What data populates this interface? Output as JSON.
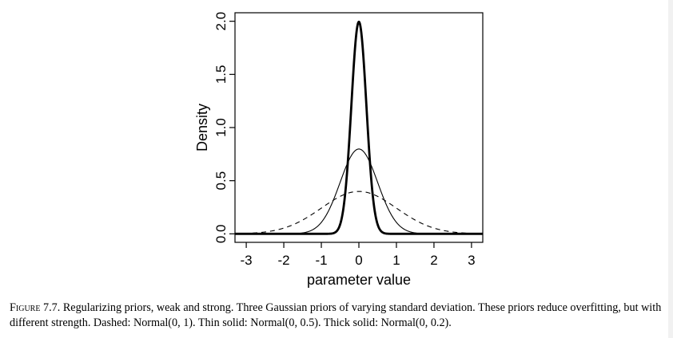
{
  "chart_data": {
    "type": "line",
    "xlabel": "parameter value",
    "ylabel": "Density",
    "xlim": [
      -3.3,
      3.3
    ],
    "ylim": [
      -0.08,
      2.08
    ],
    "xticks": [
      "-3",
      "-2",
      "-1",
      "0",
      "1",
      "2",
      "3"
    ],
    "yticks": [
      "0.0",
      "0.5",
      "1.0",
      "1.5",
      "2.0"
    ],
    "x_range": [
      -3.3,
      3.3
    ],
    "series": [
      {
        "style": "dashed",
        "sd": 1.0,
        "peak": 0.399
      },
      {
        "style": "thin-solid",
        "sd": 0.5,
        "peak": 0.798
      },
      {
        "style": "thick-solid",
        "sd": 0.2,
        "peak": 1.995
      }
    ]
  },
  "caption": {
    "figure_label": "Figure 7.7.",
    "text": " Regularizing priors, weak and strong. Three Gaussian priors of varying standard deviation. These priors reduce overfitting, but with different strength. Dashed: Normal(0, 1). Thin solid: Normal(0, 0.5). Thick solid: Normal(0, 0.2)."
  },
  "colors": {
    "line": "#000000",
    "background": "#ffffff",
    "right_strip": "#f1f1f1"
  }
}
